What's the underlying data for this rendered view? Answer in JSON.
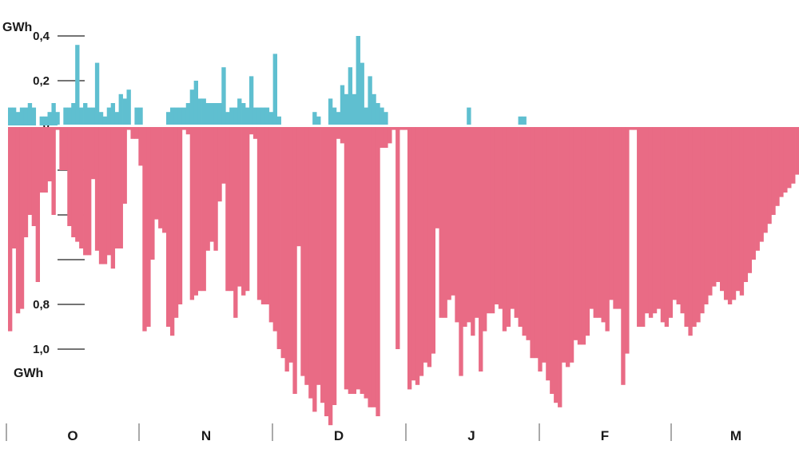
{
  "chart_data": {
    "type": "bar",
    "title": "",
    "xlabel": "",
    "ylabel_top": "GWh",
    "ylabel_bottom": "GWh",
    "y_ticks": [
      {
        "label": "0,4",
        "value": 0.4
      },
      {
        "label": "0,2",
        "value": 0.2
      },
      {
        "label": "0",
        "value": 0
      },
      {
        "label": "",
        "value": -0.2
      },
      {
        "label": "",
        "value": -0.4
      },
      {
        "label": "",
        "value": -0.6
      },
      {
        "label": "0,8",
        "value": -0.8
      },
      {
        "label": "1,0",
        "value": -1.0
      }
    ],
    "ylim": [
      -1.35,
      0.43
    ],
    "months": [
      "O",
      "N",
      "D",
      "J",
      "F",
      "M"
    ],
    "colors": {
      "positive": "#5fbfd0",
      "negative": "#e96b85"
    },
    "series": [
      {
        "values": [
          0.08,
          0.08,
          0.06,
          0.08,
          0.08,
          0.1,
          0.08,
          0.0,
          0.04,
          0.04,
          0.06,
          0.1,
          0.06,
          0.0,
          0.08,
          0.08,
          0.1,
          0.36,
          0.08,
          0.1,
          0.08,
          0.08,
          0.28,
          0.06,
          0.04,
          0.08,
          0.1,
          0.06,
          0.14,
          0.12,
          0.16,
          0.0,
          0.08,
          0.08,
          0.0,
          0.0,
          0.0,
          0.0,
          0.0,
          0.0,
          0.06,
          0.08,
          0.08,
          0.08,
          0.08,
          0.1,
          0.16,
          0.2,
          0.12,
          0.12,
          0.1,
          0.1,
          0.1,
          0.1,
          0.26,
          0.06,
          0.08,
          0.08,
          0.12,
          0.1,
          0.08,
          0.22,
          0.08,
          0.08,
          0.08,
          0.08,
          0.06,
          0.32,
          0.04,
          0.0,
          0.0,
          0.0,
          0.0,
          0.0,
          0.0,
          0.0,
          0.0,
          0.06,
          0.04,
          0.0,
          0.0,
          0.12,
          0.08,
          0.06,
          0.18,
          0.14,
          0.26,
          0.14,
          0.4,
          0.28,
          0.08,
          0.22,
          0.14,
          0.1,
          0.08,
          0.06,
          0.0,
          0.0,
          0.0,
          0.0,
          0.0,
          0.0,
          0.0,
          0.0,
          0.0,
          0.0,
          0.0,
          0.0,
          0.0,
          0.0,
          0.0,
          0.0,
          0.0,
          0.0,
          0.0,
          0.0,
          0.08,
          0.0,
          0.0,
          0.0,
          0.0,
          0.0,
          0.0,
          0.0,
          0.0,
          0.0,
          0.0,
          0.0,
          0.0,
          0.04,
          0.04,
          0.0,
          0.0,
          0.0,
          0.0,
          0.0,
          0.0,
          0.0,
          0.0,
          0.0,
          0.0,
          0.0,
          0.0,
          0.0,
          0.0,
          0.0,
          0.0,
          0.0,
          0.0,
          0.0,
          0.0,
          0.0,
          0.0,
          0.0,
          0.0,
          0.0,
          0.0,
          0.0,
          0.0,
          0.0,
          0.0,
          0.0,
          0.0,
          0.0,
          0.0,
          0.0,
          0.0,
          0.0,
          0.0,
          0.0,
          0.0,
          0.0,
          0.0,
          0.0,
          0.0,
          0.0,
          0.0,
          0.0,
          0.0,
          0.0,
          0.0,
          0.0,
          0.0,
          0.0,
          0.0,
          0.0
        ]
      },
      {
        "values": [
          -0.92,
          -0.55,
          -0.84,
          -0.82,
          -0.5,
          -0.4,
          -0.45,
          -0.7,
          -0.3,
          -0.3,
          -0.25,
          -0.4,
          -0.02,
          -0.2,
          -0.2,
          -0.45,
          -0.5,
          -0.52,
          -0.55,
          -0.58,
          -0.58,
          -0.24,
          -0.56,
          -0.62,
          -0.62,
          -0.58,
          -0.64,
          -0.55,
          -0.55,
          -0.35,
          -0.02,
          -0.06,
          -0.06,
          -0.18,
          -0.92,
          -0.9,
          -0.6,
          -0.42,
          -0.46,
          -0.48,
          -0.9,
          -0.94,
          -0.86,
          -0.8,
          -0.02,
          -0.04,
          -0.78,
          -0.76,
          -0.74,
          -0.74,
          -0.56,
          -0.52,
          -0.56,
          -0.34,
          -0.26,
          -0.74,
          -0.74,
          -0.86,
          -0.72,
          -0.76,
          -0.74,
          -0.04,
          -0.06,
          -0.78,
          -0.8,
          -0.8,
          -0.88,
          -0.92,
          -1.0,
          -1.04,
          -1.1,
          -1.06,
          -1.2,
          -0.54,
          -1.12,
          -1.16,
          -1.22,
          -1.28,
          -1.16,
          -1.24,
          -1.3,
          -1.34,
          -1.25,
          -0.06,
          -0.08,
          -1.18,
          -1.2,
          -1.2,
          -1.18,
          -1.2,
          -1.22,
          -1.26,
          -1.26,
          -1.3,
          -0.1,
          -0.1,
          -0.08,
          -0.02,
          -1.0,
          -0.02,
          -0.02,
          -1.18,
          -1.14,
          -1.16,
          -1.12,
          -1.06,
          -1.08,
          -1.02,
          -0.46,
          -0.86,
          -0.86,
          -0.78,
          -0.76,
          -0.88,
          -1.12,
          -0.9,
          -0.88,
          -0.94,
          -0.86,
          -1.1,
          -0.92,
          -0.84,
          -0.84,
          -0.8,
          -0.82,
          -0.92,
          -0.9,
          -0.82,
          -0.86,
          -0.9,
          -0.94,
          -0.96,
          -1.04,
          -1.04,
          -1.1,
          -1.06,
          -1.14,
          -1.2,
          -1.24,
          -1.26,
          -1.06,
          -1.08,
          -1.06,
          -0.96,
          -0.98,
          -0.98,
          -0.94,
          -0.82,
          -0.86,
          -0.86,
          -0.88,
          -0.92,
          -0.78,
          -0.82,
          -0.82,
          -1.16,
          -1.02,
          -0.02,
          -0.02,
          -0.9,
          -0.9,
          -0.84,
          -0.86,
          -0.84,
          -0.82,
          -0.88,
          -0.9,
          -0.86,
          -0.78,
          -0.8,
          -0.84,
          -0.9,
          -0.94,
          -0.9,
          -0.88,
          -0.84,
          -0.8,
          -0.76,
          -0.72,
          -0.7,
          -0.74,
          -0.78,
          -0.8,
          -0.78,
          -0.74,
          -0.76,
          -0.7,
          -0.66,
          -0.6,
          -0.56,
          -0.52,
          -0.48,
          -0.44,
          -0.4,
          -0.36,
          -0.32,
          -0.3,
          -0.28,
          -0.26,
          -0.22
        ]
      }
    ]
  }
}
